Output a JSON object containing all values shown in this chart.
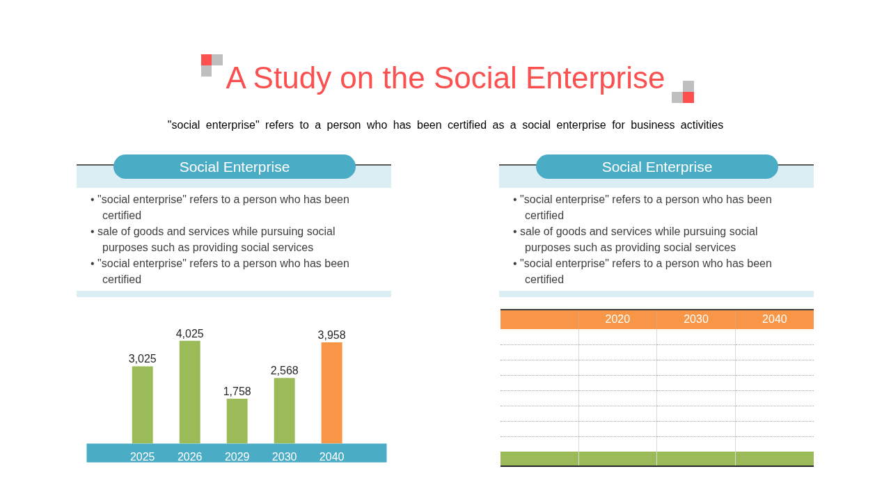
{
  "chart_data": [
    {
      "type": "other",
      "title": "A Study on the Social Enterprise",
      "subtitle": "\"social enterprise\" refers to a person who has been certified as a social enterprise for business activities"
    },
    {
      "type": "bar",
      "title": "Social Enterprise",
      "annotations": [
        "• \"social enterprise\" refers to a person who has been certified",
        "• sale of goods and services while pursuing social purposes such as providing social services",
        "• \"social enterprise\" refers to a person who has been certified"
      ],
      "categories": [
        "2025",
        "2026",
        "2029",
        "2030",
        "2040"
      ],
      "values": [
        3025,
        4025,
        1758,
        2568,
        3958
      ],
      "value_labels": [
        "3,025",
        "4,025",
        "1,758",
        "2,568",
        "3,958"
      ],
      "colors": [
        "#9bbb59",
        "#9bbb59",
        "#9bbb59",
        "#9bbb59",
        "#f79646"
      ]
    },
    {
      "type": "other",
      "title": "Social Enterprise",
      "annotations": [
        "• \"social enterprise\" refers to a person who has been certified",
        "• sale of goods and services while pursuing social purposes such as providing social services",
        "• \"social enterprise\" refers to a person who has been certified"
      ],
      "categories": [
        null,
        "2020",
        "2030",
        "2040"
      ],
      "cells": [
        [
          null,
          null,
          null,
          null
        ],
        [
          null,
          null,
          null,
          null
        ],
        [
          null,
          null,
          null,
          null
        ],
        [
          null,
          null,
          null,
          null
        ],
        [
          null,
          null,
          null,
          null
        ],
        [
          null,
          null,
          null,
          null
        ],
        [
          null,
          null,
          null,
          null
        ],
        [
          null,
          null,
          null,
          null
        ],
        [
          null,
          null,
          null,
          null
        ]
      ]
    }
  ]
}
